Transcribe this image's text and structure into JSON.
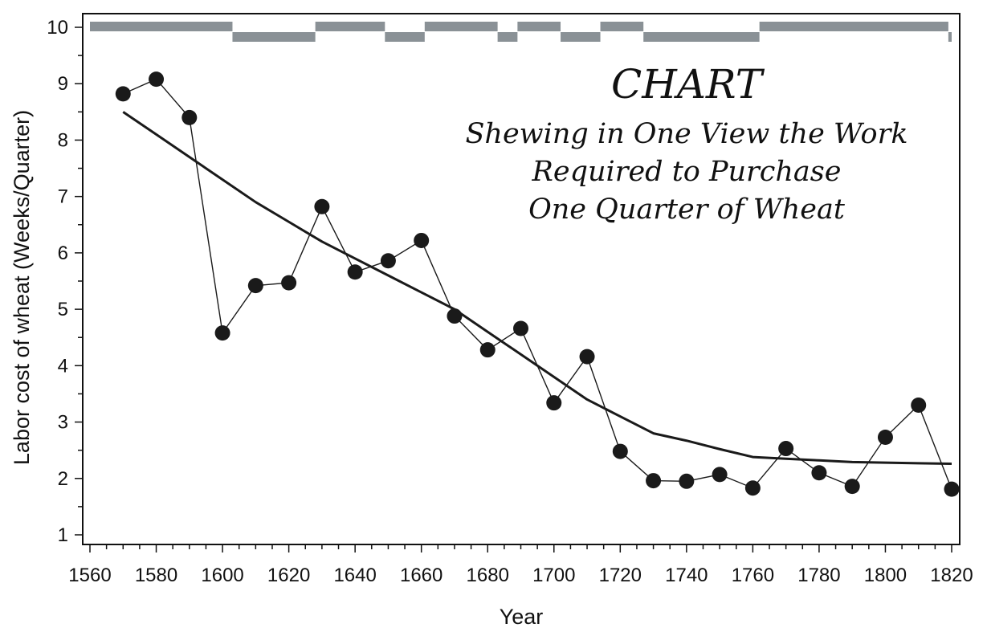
{
  "chart_data": {
    "type": "line",
    "title": "CHART",
    "subtitle_lines": [
      "Shewing in One View the Work",
      "Required to Purchase",
      "One Quarter of Wheat"
    ],
    "xlabel": "Year",
    "ylabel": "Labor cost of wheat (Weeks/Quarter)",
    "xlim": [
      1560,
      1820
    ],
    "ylim": [
      1,
      10
    ],
    "x_ticks": [
      1560,
      1580,
      1600,
      1620,
      1640,
      1660,
      1680,
      1700,
      1720,
      1740,
      1760,
      1780,
      1800,
      1820
    ],
    "y_ticks": [
      1,
      2,
      3,
      4,
      5,
      6,
      7,
      8,
      9,
      10
    ],
    "grid": false,
    "series": [
      {
        "style": "points-connected",
        "color": "#1a1a1a",
        "x": [
          1570,
          1580,
          1590,
          1600,
          1610,
          1620,
          1630,
          1640,
          1650,
          1660,
          1670,
          1680,
          1690,
          1700,
          1710,
          1720,
          1730,
          1740,
          1750,
          1760,
          1770,
          1780,
          1790,
          1800,
          1810,
          1820
        ],
        "values": [
          8.82,
          9.08,
          8.4,
          4.58,
          5.42,
          5.47,
          6.82,
          5.66,
          5.86,
          6.22,
          4.88,
          4.28,
          4.66,
          3.34,
          4.16,
          2.48,
          1.96,
          1.95,
          2.07,
          1.83,
          2.53,
          2.1,
          1.86,
          2.73,
          3.3,
          1.81
        ]
      },
      {
        "style": "smooth-line",
        "color": "#1a1a1a",
        "x": [
          1570,
          1580,
          1590,
          1600,
          1610,
          1620,
          1630,
          1640,
          1650,
          1660,
          1670,
          1680,
          1690,
          1700,
          1710,
          1720,
          1730,
          1740,
          1750,
          1760,
          1770,
          1780,
          1790,
          1800,
          1810,
          1820
        ],
        "values": [
          8.5,
          8.1,
          7.7,
          7.3,
          6.9,
          6.55,
          6.2,
          5.9,
          5.6,
          5.3,
          5.0,
          4.6,
          4.2,
          3.8,
          3.4,
          3.1,
          2.8,
          2.67,
          2.52,
          2.38,
          2.35,
          2.32,
          2.29,
          2.28,
          2.27,
          2.26
        ]
      }
    ],
    "reign_bands": {
      "color": "#8a9196",
      "segments": [
        {
          "start": 1560,
          "end": 1603,
          "level": "high"
        },
        {
          "start": 1603,
          "end": 1628,
          "level": "low"
        },
        {
          "start": 1628,
          "end": 1649,
          "level": "high"
        },
        {
          "start": 1649,
          "end": 1661,
          "level": "low"
        },
        {
          "start": 1661,
          "end": 1683,
          "level": "high"
        },
        {
          "start": 1683,
          "end": 1689,
          "level": "low"
        },
        {
          "start": 1689,
          "end": 1702,
          "level": "high"
        },
        {
          "start": 1702,
          "end": 1714,
          "level": "low"
        },
        {
          "start": 1714,
          "end": 1727,
          "level": "high"
        },
        {
          "start": 1727,
          "end": 1762,
          "level": "low"
        },
        {
          "start": 1762,
          "end": 1819,
          "level": "high"
        },
        {
          "start": 1819,
          "end": 1820,
          "level": "low"
        }
      ]
    }
  }
}
